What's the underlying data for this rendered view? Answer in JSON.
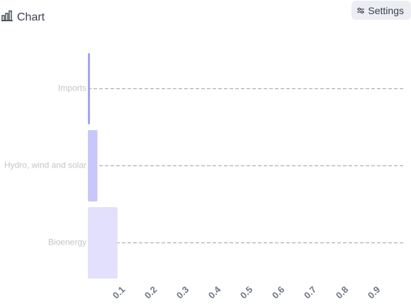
{
  "header": {
    "title": "Chart",
    "title_icon": "bar-chart-icon",
    "settings_label": "Settings",
    "settings_icon": "sliders-icon"
  },
  "chart_data": {
    "type": "bar",
    "orientation": "horizontal",
    "categories": [
      "Imports",
      "Hydro, wind and solar",
      "Bioenergy"
    ],
    "values": [
      0.006,
      0.03,
      0.093
    ],
    "colors": [
      "#a5a3f3",
      "#c8c6fa",
      "#e2e0fc"
    ],
    "xticks": [
      "0.1",
      "0.2",
      "0.3",
      "0.4",
      "0.5",
      "0.6",
      "0.7",
      "0.8",
      "0.9"
    ],
    "xlim": [
      0,
      1
    ],
    "grid": "dashed horizontal lines at category centers",
    "legend": "none"
  }
}
